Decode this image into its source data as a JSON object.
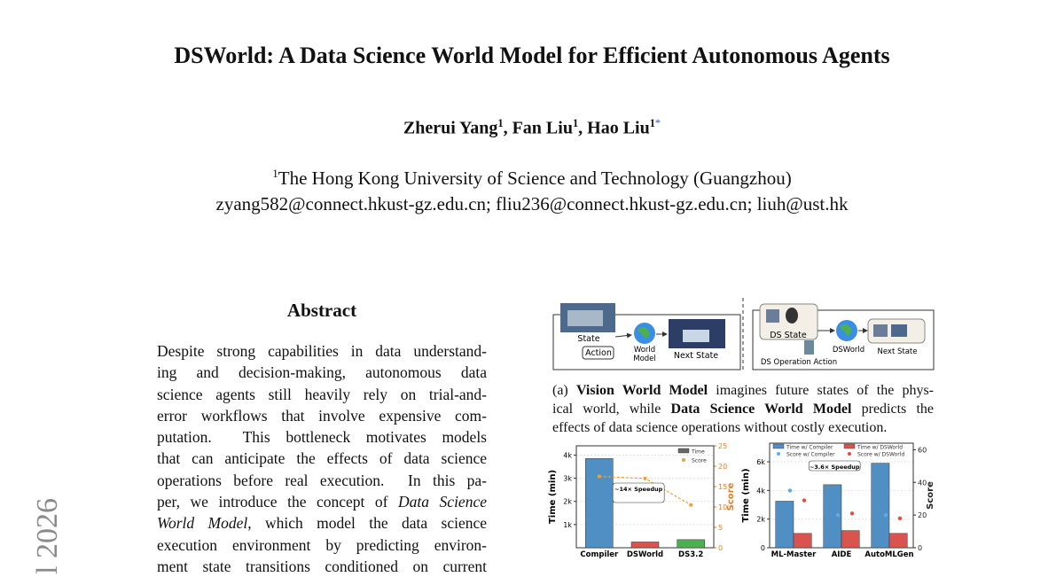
{
  "title": "DSWorld: A Data Science World Model for Efficient Autonomous Agents",
  "authors": [
    {
      "name": "Zherui Yang",
      "affiliation": "1"
    },
    {
      "name": "Fan Liu",
      "affiliation": "1"
    },
    {
      "name": "Hao Liu",
      "affiliation": "1",
      "mark": "*"
    }
  ],
  "author_separator": ", ",
  "affiliation": {
    "number": "1",
    "name": "The Hong Kong University of Science and Technology (Guangzhou)"
  },
  "emails": "zyang582@connect.hkust-gz.edu.cn; fliu236@connect.hkust-gz.edu.cn; liuh@ust.hk",
  "arxiv_stamp": "l 2026",
  "abstract": {
    "heading": "Abstract",
    "lines": [
      [
        {
          "text": "Despite strong capabilities in data understand-"
        }
      ],
      [
        {
          "text": "ing and decision-making, autonomous data"
        }
      ],
      [
        {
          "text": "science agents still heavily rely on trial-and-"
        }
      ],
      [
        {
          "text": "error workflows that involve expensive com-"
        }
      ],
      [
        {
          "text": "putation.  This bottleneck motivates models"
        }
      ],
      [
        {
          "text": "that can anticipate the effects of data science"
        }
      ],
      [
        {
          "text": "operations before real execution.  In this pa-"
        }
      ],
      [
        {
          "text": "per, we introduce the concept of "
        },
        {
          "text": "Data Science",
          "style": "italic"
        }
      ],
      [
        {
          "text": "World Model",
          "style": "italic"
        },
        {
          "text": ", which model the data science"
        }
      ],
      [
        {
          "text": "execution environment by predicting environ-"
        }
      ],
      [
        {
          "text": "ment state transitions conditioned on current"
        }
      ]
    ]
  },
  "figure": {
    "diagram": {
      "state": "State",
      "action": "Action",
      "world_model": [
        "World",
        "Model"
      ],
      "next_state_left": "Next State",
      "ds_state": "DS State",
      "dsworld": "DSWorld",
      "next_state_right": "Next State",
      "ds_action": "DS Operation Action"
    },
    "caption_a": [
      [
        {
          "text": "(a) "
        },
        {
          "text": "Vision World Model",
          "style": "bold"
        },
        {
          "text": " imagines future states of the phys-"
        }
      ],
      [
        {
          "text": "ical world, while "
        },
        {
          "text": "Data Science World Model",
          "style": "bold"
        },
        {
          "text": " predicts the"
        }
      ],
      [
        {
          "text": "effects of data science operations without costly execution."
        }
      ]
    ]
  },
  "chart_data": [
    {
      "type": "bar",
      "categories": [
        "Compiler",
        "DSWorld",
        "DS3.2"
      ],
      "y_label": "Time (min)",
      "y2_label": "Score",
      "y2_color": "#e67e22",
      "ylim": [
        0,
        4400
      ],
      "yticks": [
        {
          "value": 1000,
          "label": "1k"
        },
        {
          "value": 2000,
          "label": "2k"
        },
        {
          "value": 3000,
          "label": "3k"
        },
        {
          "value": 4000,
          "label": "4k"
        }
      ],
      "y2lim": [
        0,
        25
      ],
      "y2ticks": [
        0,
        5,
        10,
        15,
        20,
        25
      ],
      "grid": true,
      "legend": "top-right",
      "series": [
        {
          "name": "Time",
          "type": "bar",
          "color": "#666666",
          "colors": [
            "#4f8fc4",
            "#d9534f",
            "#4caf50"
          ],
          "values": [
            3850,
            250,
            350
          ]
        },
        {
          "name": "Score",
          "type": "line",
          "axis": "y2",
          "color": "#f0a030",
          "values": [
            17.5,
            17,
            10.5
          ]
        }
      ],
      "annotation": "~14× Speedup"
    },
    {
      "type": "bar",
      "categories": [
        "ML-Master",
        "AIDE",
        "AutoMLGen"
      ],
      "y_label": "Time (min)",
      "y2_label": "Score",
      "y2_color": "#222222",
      "ylim": [
        0,
        7300
      ],
      "yticks": [
        0,
        {
          "value": 2000,
          "label": "2k"
        },
        {
          "value": 4000,
          "label": "4k"
        },
        {
          "value": 6000,
          "label": "6k"
        }
      ],
      "y2lim": [
        0,
        64
      ],
      "y2ticks": [
        0,
        20,
        40,
        60
      ],
      "grid": true,
      "legend": "top",
      "series": [
        {
          "name": "Time w/ Compiler",
          "type": "bar",
          "color": "#4f8fc4",
          "values": [
            3250,
            4400,
            5900
          ]
        },
        {
          "name": "Time w/ DSWorld",
          "type": "bar",
          "color": "#d9534f",
          "values": [
            1000,
            1200,
            1000
          ]
        },
        {
          "name": "Score w/ Compiler",
          "type": "scatter",
          "axis": "y2",
          "color": "#5dade2",
          "values": [
            35,
            20,
            20
          ]
        },
        {
          "name": "Score w/ DSWorld",
          "type": "scatter",
          "axis": "y2",
          "color": "#e74c3c",
          "values": [
            29,
            21,
            18
          ]
        }
      ],
      "annotation": "~3.6× Speedup"
    }
  ]
}
